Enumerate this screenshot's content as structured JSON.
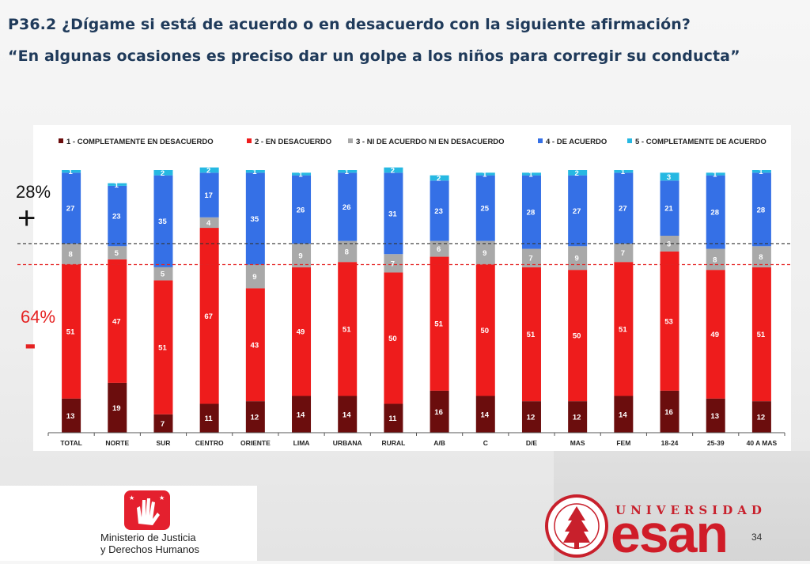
{
  "question": {
    "title": "P36.2 ¿Dígame si está de acuerdo o en desacuerdo con la siguiente afirmación?",
    "statement": "“En algunas ocasiones es preciso dar un golpe a los niños para corregir su conducta”"
  },
  "summary": {
    "agree_pct": "28%",
    "agree_sign": "+",
    "disagree_pct": "64%",
    "disagree_sign": "-"
  },
  "colors": {
    "s1": "#6b0d0d",
    "s2": "#ee1c1c",
    "s3": "#a9a9a9",
    "s4": "#3570e6",
    "s5": "#26b8e2",
    "agree_line": "#333333",
    "disagree_line": "#e52222"
  },
  "chart_data": {
    "type": "bar",
    "stacked": true,
    "orientation": "vertical",
    "ylim": [
      0,
      100
    ],
    "categories": [
      "TOTAL",
      "NORTE",
      "SUR",
      "CENTRO",
      "ORIENTE",
      "LIMA",
      "URBANA",
      "RURAL",
      "A/B",
      "C",
      "D/E",
      "MAS",
      "FEM",
      "18-24",
      "25-39",
      "40 A MAS"
    ],
    "series": [
      {
        "name": "1 - COMPLETAMENTE EN DESACUERDO",
        "values": [
          13,
          19,
          7,
          11,
          12,
          14,
          14,
          11,
          16,
          14,
          12,
          12,
          14,
          16,
          13,
          12
        ]
      },
      {
        "name": "2 - EN DESACUERDO",
        "values": [
          51,
          47,
          51,
          67,
          43,
          49,
          51,
          50,
          51,
          50,
          51,
          50,
          51,
          53,
          49,
          51
        ]
      },
      {
        "name": "3 - NI DE ACUERDO NI EN DESACUERDO",
        "values": [
          8,
          5,
          5,
          4,
          9,
          9,
          8,
          7,
          6,
          9,
          7,
          9,
          7,
          6,
          8,
          8
        ]
      },
      {
        "name": "4 - DE ACUERDO",
        "values": [
          27,
          23,
          35,
          17,
          35,
          26,
          26,
          31,
          23,
          25,
          28,
          27,
          27,
          21,
          28,
          28
        ]
      },
      {
        "name": "5 - COMPLETAMENTE DE ACUERDO",
        "values": [
          1,
          1,
          2,
          2,
          1,
          1,
          1,
          2,
          2,
          1,
          1,
          2,
          1,
          3,
          1,
          1
        ]
      }
    ],
    "reference_lines": [
      {
        "label": "28%",
        "value": 72,
        "style": "dashed",
        "color": "#333333"
      },
      {
        "label": "64%",
        "value": 64,
        "style": "dashed",
        "color": "#e52222"
      }
    ],
    "legend_position": "top"
  },
  "footer": {
    "ministry_line1": "Ministerio de Justicia",
    "ministry_line2": "y Derechos Humanos",
    "university_label": "UNIVERSIDAD",
    "university_name": "esan",
    "page_number": "34"
  }
}
